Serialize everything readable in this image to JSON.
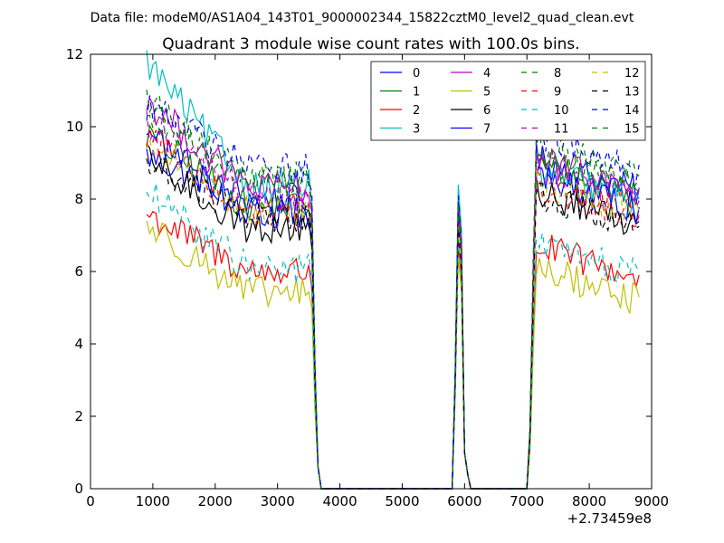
{
  "chart_data": {
    "type": "line",
    "suptitle": "Data file: modeM0/AS1A04_143T01_9000002344_15822cztM0_level2_quad_clean.evt",
    "title": "Quadrant 3 module wise count rates with 100.0s bins.",
    "xlabel": "",
    "ylabel": "",
    "x_offset_label": "+2.73459e8",
    "xlim": [
      0,
      9000
    ],
    "ylim": [
      0,
      12
    ],
    "x_ticks": [
      0,
      1000,
      2000,
      3000,
      4000,
      5000,
      6000,
      7000,
      8000,
      9000
    ],
    "y_ticks": [
      0,
      2,
      4,
      6,
      8,
      10,
      12
    ],
    "grid": false,
    "legend_position": "top-right",
    "legend_columns": 4,
    "segments": [
      {
        "x0": 900,
        "x1": 3500
      },
      {
        "x0": 5850,
        "x1": 5950
      },
      {
        "x0": 7150,
        "x1": 8800
      }
    ],
    "series": [
      {
        "name": "0",
        "color": "#0000ff",
        "style": "solid",
        "level1": 9.2,
        "level2": 8.0,
        "level3": 8.3,
        "peak2": 8.0
      },
      {
        "name": "1",
        "color": "#008000",
        "style": "solid",
        "level1": 9.8,
        "level2": 7.8,
        "level3": 8.2,
        "peak2": 7.6
      },
      {
        "name": "2",
        "color": "#ff0000",
        "style": "solid",
        "level1": 7.6,
        "level2": 6.0,
        "level3": 5.9,
        "peak2": 6.8
      },
      {
        "name": "3",
        "color": "#00bfbf",
        "style": "solid",
        "level1": 11.8,
        "level2": 8.4,
        "level3": 8.0,
        "peak2": 8.4
      },
      {
        "name": "4",
        "color": "#bf00bf",
        "style": "solid",
        "level1": 10.7,
        "level2": 8.3,
        "level3": 8.3,
        "peak2": 7.9
      },
      {
        "name": "5",
        "color": "#bfbf00",
        "style": "solid",
        "level1": 7.3,
        "level2": 5.4,
        "level3": 5.3,
        "peak2": 6.4
      },
      {
        "name": "6",
        "color": "#000000",
        "style": "solid",
        "level1": 9.1,
        "level2": 7.2,
        "level3": 7.4,
        "peak2": 7.6
      },
      {
        "name": "7",
        "color": "#0000ff",
        "style": "solid",
        "level1": 9.9,
        "level2": 7.6,
        "level3": 7.8,
        "peak2": 7.7
      },
      {
        "name": "8",
        "color": "#008000",
        "style": "dashed",
        "level1": 10.8,
        "level2": 8.6,
        "level3": 8.4,
        "peak2": 7.9
      },
      {
        "name": "9",
        "color": "#ff0000",
        "style": "dashed",
        "level1": 9.8,
        "level2": 7.7,
        "level3": 7.6,
        "peak2": 7.5
      },
      {
        "name": "10",
        "color": "#00bfbf",
        "style": "dashed",
        "level1": 8.2,
        "level2": 6.1,
        "level3": 6.0,
        "peak2": 6.9
      },
      {
        "name": "11",
        "color": "#bf00bf",
        "style": "dashed",
        "level1": 10.1,
        "level2": 8.1,
        "level3": 8.0,
        "peak2": 7.8
      },
      {
        "name": "12",
        "color": "#bfbf00",
        "style": "dashed",
        "level1": 9.6,
        "level2": 7.7,
        "level3": 7.7,
        "peak2": 7.3
      },
      {
        "name": "13",
        "color": "#000000",
        "style": "dashed",
        "level1": 9.0,
        "level2": 7.5,
        "level3": 7.3,
        "peak2": 7.2
      },
      {
        "name": "14",
        "color": "#0000ff",
        "style": "dashed",
        "level1": 10.6,
        "level2": 8.9,
        "level3": 9.0,
        "peak2": 8.1
      },
      {
        "name": "15",
        "color": "#008000",
        "style": "dashed",
        "level1": 10.4,
        "level2": 8.5,
        "level3": 8.7,
        "peak2": 7.9
      }
    ]
  }
}
